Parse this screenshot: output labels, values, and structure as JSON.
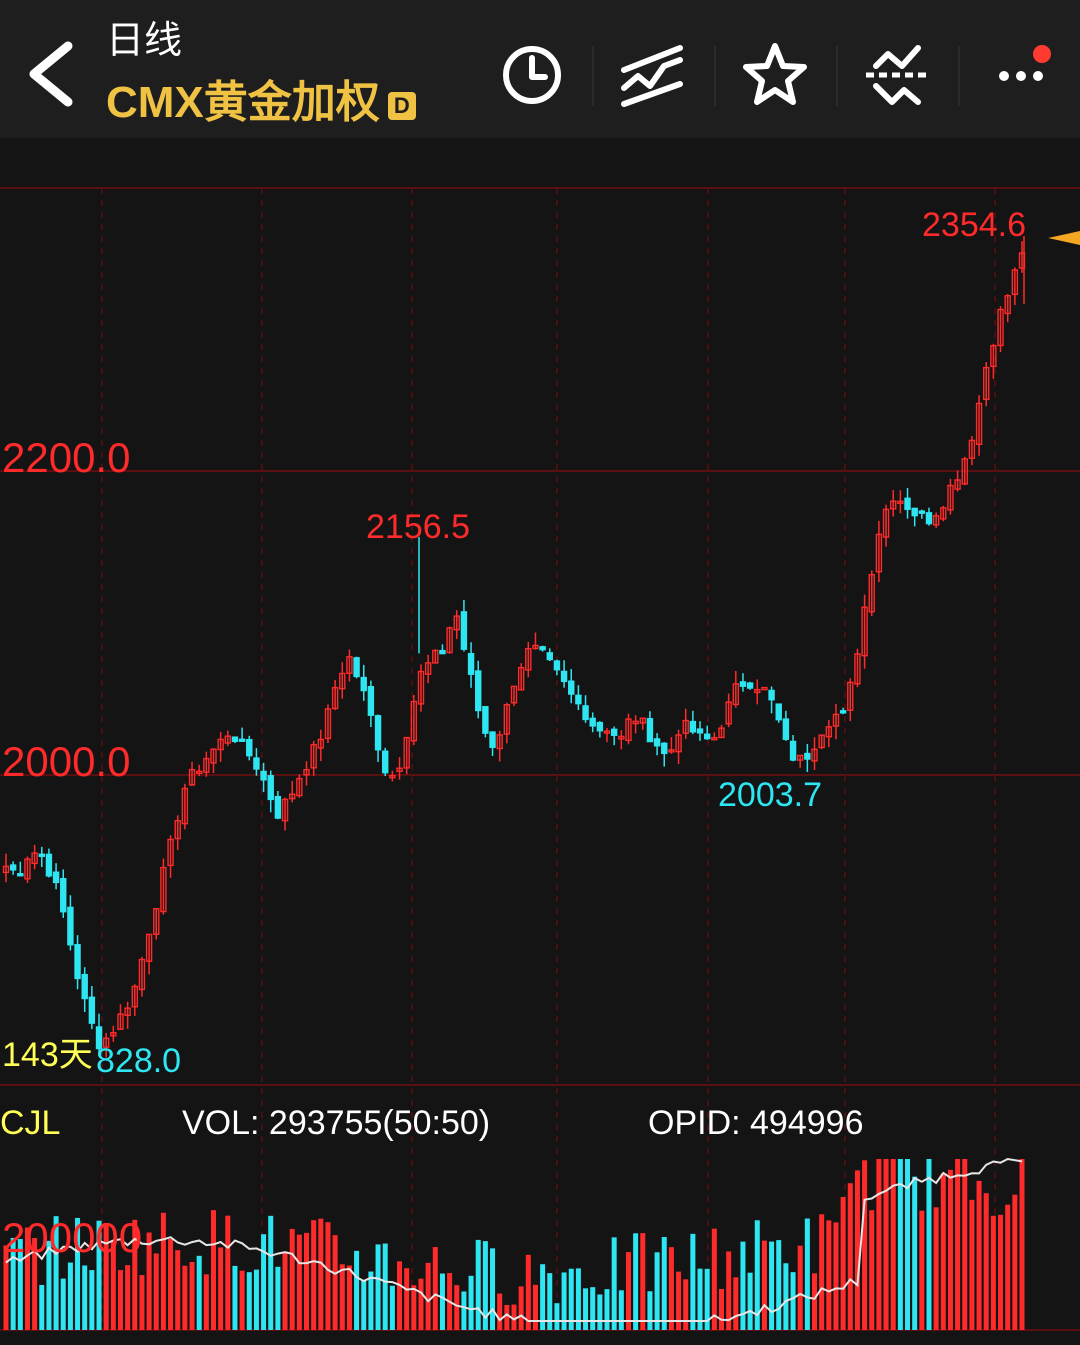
{
  "header": {
    "period": "日线",
    "symbol": "CMX黄金加权",
    "badge": "D",
    "icons": [
      "back-icon",
      "clock-icon",
      "trend-lines-icon",
      "star-icon",
      "indicator-icon",
      "more-icon"
    ],
    "notification_dot_color": "#ff3b30"
  },
  "colors": {
    "up": "#ff2b2b",
    "down": "#2ee6f2",
    "grid": "#5a1010",
    "label_red": "#ff2b2b",
    "label_cyan": "#2ee6f2",
    "label_yellow": "#ffff55",
    "accent": "#f0c243",
    "oi_line": "#e6e6e6"
  },
  "labels": {
    "high_marker": "2354.6",
    "peak_marker": "2156.5",
    "trough_marker": "2003.7",
    "low_marker": "828.0",
    "days": "143天",
    "y_tick_upper": "2200.0",
    "y_tick_lower": "2000.0",
    "vol_title": "CJL",
    "vol_value": "VOL: 293755(50:50)",
    "opid_value": "OPID: 494996",
    "vol_tick": "200000"
  },
  "chart_data": {
    "type": "candlestick",
    "days_shown": 143,
    "y_ticks": [
      2000.0,
      2200.0
    ],
    "annotations": [
      {
        "label": "2354.6",
        "value": 2354.6,
        "kind": "high"
      },
      {
        "label": "2156.5",
        "value": 2156.5,
        "kind": "high"
      },
      {
        "label": "2003.7",
        "value": 2003.7,
        "kind": "low"
      },
      {
        "label": "828.0",
        "kind": "low"
      }
    ],
    "close_path": [
      1940,
      1935,
      1950,
      1948,
      1932,
      1905,
      1870,
      1840,
      1822,
      1832,
      1845,
      1862,
      1895,
      1925,
      1955,
      1990,
      2002,
      2012,
      2020,
      2030,
      2018,
      2010,
      1993,
      1975,
      1985,
      2002,
      2015,
      2032,
      2062,
      2078,
      2060,
      2035,
      2005,
      1998,
      2032,
      2065,
      2075,
      2082,
      2110,
      2075,
      2042,
      2018,
      2032,
      2062,
      2080,
      2082,
      2072,
      2062,
      2050,
      2042,
      2030,
      2032,
      2022,
      2040,
      2032,
      2022,
      2010,
      2032,
      2030,
      2022,
      2025,
      2042,
      2060,
      2062,
      2058,
      2045,
      2020,
      2008,
      2015,
      2030,
      2040,
      2038,
      2080,
      2125,
      2165,
      2185,
      2180,
      2172,
      2168,
      2176,
      2190,
      2205,
      2230,
      2270,
      2300,
      2320,
      2345
    ],
    "volume_summary": {
      "vol": 293755,
      "ratio": "50:50",
      "opid": 494996,
      "tick": 200000
    }
  }
}
